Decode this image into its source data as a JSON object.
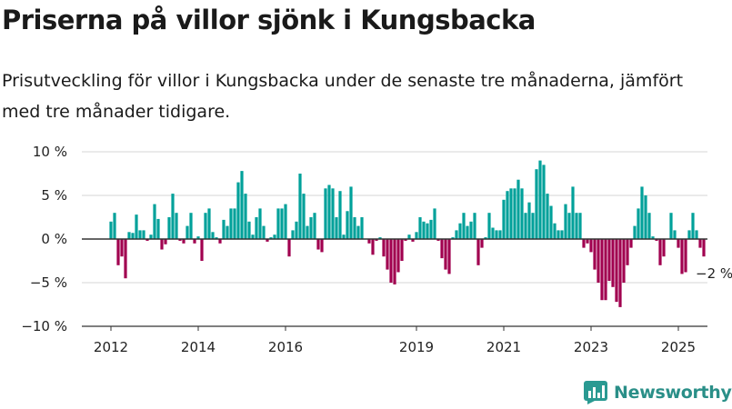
{
  "header": {
    "title": "Priserna på villor sjönk i Kungsbacka",
    "subtitle": "Prisutveckling för villor i Kungsbacka under de senaste tre månaderna, jämfört med tre månader tidigare."
  },
  "brand": {
    "name": "Newsworthy",
    "color": "#2a9a92",
    "icon": "bar-chart-logo-icon"
  },
  "colors": {
    "positive": "#00a19a",
    "negative": "#a1004f",
    "grid": "#d4d4d4",
    "axis": "#333333"
  },
  "chart_data": {
    "type": "bar",
    "title": "Priserna på villor sjönk i Kungsbacka",
    "xlabel": "",
    "ylabel": "",
    "ylim": [
      -10,
      10
    ],
    "yticks": [
      10,
      5,
      0,
      -5,
      -10
    ],
    "ytick_labels": [
      "10 %",
      "5 %",
      "0 %",
      "−5 %",
      "−10 %"
    ],
    "xticks": [
      "2012",
      "2014",
      "2016",
      "2019",
      "2021",
      "2023",
      "2025"
    ],
    "xtick_months": [
      0,
      24,
      48,
      84,
      108,
      132,
      156
    ],
    "grid": true,
    "legend": "none",
    "categories_note": "monthly values starting January 2012",
    "start": "2012-01",
    "values": [
      2,
      3,
      -3,
      -2,
      -4.5,
      0.8,
      0.7,
      2.8,
      1,
      1,
      -0.2,
      0.5,
      4,
      2.3,
      -1.2,
      -0.6,
      2.5,
      5.2,
      3,
      -0.2,
      -0.5,
      1.5,
      3,
      -0.5,
      0.3,
      -2.5,
      3,
      3.5,
      0.8,
      0.2,
      -0.5,
      2.2,
      1.5,
      3.5,
      3.5,
      6.5,
      7.8,
      5.2,
      2,
      0.5,
      2.5,
      3.5,
      1.5,
      -0.3,
      0.2,
      0.5,
      3.5,
      3.5,
      4,
      -2,
      1,
      2,
      7.5,
      5.2,
      1.5,
      2.5,
      3,
      -1.2,
      -1.5,
      5.8,
      6.2,
      5.8,
      2.5,
      5.5,
      0.5,
      3.2,
      6,
      2.5,
      1.5,
      2.5,
      0,
      -0.5,
      -1.8,
      -0.2,
      0.2,
      -2,
      -3.5,
      -5,
      -5.2,
      -3.8,
      -2.5,
      -0.2,
      0.5,
      -0.3,
      0.8,
      2.5,
      2,
      1.8,
      2.2,
      3.5,
      -0.2,
      -2.2,
      -3.5,
      -4,
      0.2,
      1,
      1.8,
      3,
      1.5,
      2,
      3,
      -3,
      -1,
      0.2,
      3,
      1.3,
      1,
      1,
      4.5,
      5.5,
      5.8,
      5.8,
      6.8,
      5.8,
      3,
      4.2,
      3,
      8,
      9,
      8.5,
      5.2,
      3.8,
      1.8,
      1,
      1,
      4,
      3,
      6,
      3,
      3,
      -1,
      -0.5,
      -1.5,
      -3.5,
      -5,
      -7,
      -7,
      -4.8,
      -5.5,
      -7.2,
      -7.8,
      -5,
      -3,
      -1,
      1.5,
      3.5,
      6,
      5,
      3,
      0.3,
      -0.2,
      -3,
      -2,
      0,
      3,
      1,
      -1,
      -4,
      -3.8,
      1,
      3,
      1,
      -1,
      -2
    ],
    "annotations": [
      {
        "text": "−2 %",
        "month": 166,
        "value": -2
      }
    ]
  }
}
